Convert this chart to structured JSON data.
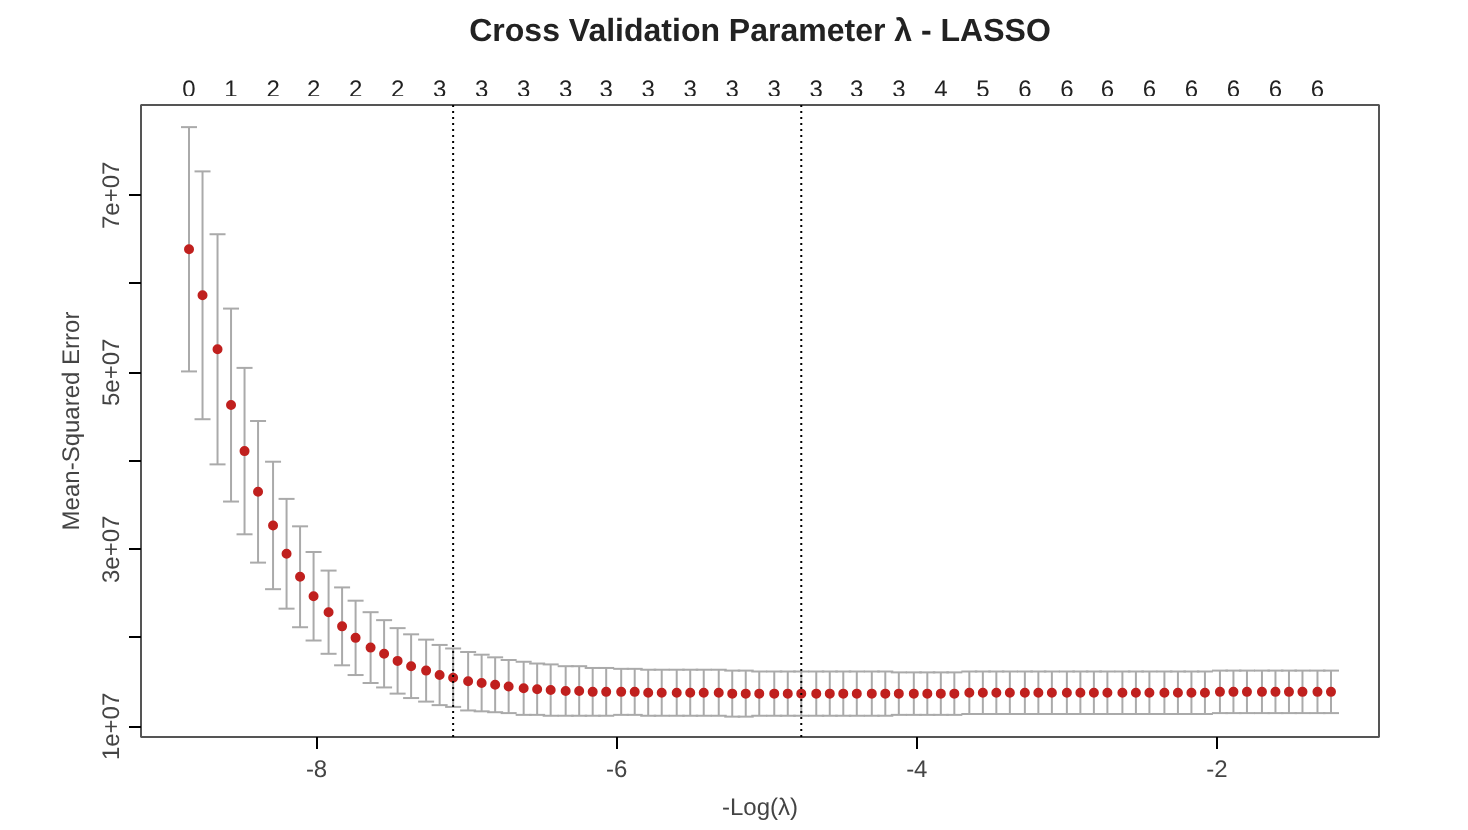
{
  "chart_data": {
    "type": "scatter",
    "title": "Cross Validation Parameter λ - LASSO",
    "xlabel": "-Log(λ)",
    "ylabel": "Mean-Squared Error",
    "x": [
      -8.85,
      -8.76,
      -8.66,
      -8.57,
      -8.48,
      -8.39,
      -8.29,
      -8.2,
      -8.11,
      -8.02,
      -7.92,
      -7.83,
      -7.74,
      -7.64,
      -7.55,
      -7.46,
      -7.37,
      -7.27,
      -7.18,
      -7.09,
      -6.99,
      -6.9,
      -6.81,
      -6.72,
      -6.62,
      -6.53,
      -6.44,
      -6.34,
      -6.25,
      -6.16,
      -6.07,
      -5.97,
      -5.88,
      -5.79,
      -5.7,
      -5.6,
      -5.51,
      -5.42,
      -5.32,
      -5.23,
      -5.14,
      -5.05,
      -4.95,
      -4.86,
      -4.77,
      -4.67,
      -4.58,
      -4.49,
      -4.4,
      -4.3,
      -4.21,
      -4.12,
      -4.02,
      -3.93,
      -3.84,
      -3.75,
      -3.65,
      -3.56,
      -3.47,
      -3.38,
      -3.28,
      -3.19,
      -3.1,
      -3.0,
      -2.91,
      -2.82,
      -2.73,
      -2.63,
      -2.54,
      -2.45,
      -2.35,
      -2.26,
      -2.17,
      -2.08,
      -1.98,
      -1.89,
      -1.8,
      -1.7,
      -1.61,
      -1.52,
      -1.43,
      -1.33,
      -1.24
    ],
    "series": [
      {
        "color": "#c0201e",
        "values": [
          63900000,
          58700000,
          52600000,
          46300000,
          41100000,
          36500000,
          32700000,
          29500000,
          26900000,
          24700000,
          22900000,
          21300000,
          20000000,
          18900000,
          18200000,
          17400000,
          16800000,
          16300000,
          15800000,
          15500000,
          15100000,
          14900000,
          14700000,
          14500000,
          14300000,
          14200000,
          14100000,
          14000000,
          14000000,
          13900000,
          13900000,
          13900000,
          13900000,
          13800000,
          13800000,
          13800000,
          13800000,
          13800000,
          13800000,
          13700000,
          13700000,
          13700000,
          13700000,
          13700000,
          13700000,
          13700000,
          13700000,
          13700000,
          13700000,
          13700000,
          13700000,
          13700000,
          13700000,
          13700000,
          13700000,
          13700000,
          13800000,
          13800000,
          13800000,
          13800000,
          13800000,
          13800000,
          13800000,
          13800000,
          13800000,
          13800000,
          13800000,
          13800000,
          13800000,
          13800000,
          13800000,
          13800000,
          13800000,
          13800000,
          13900000,
          13900000,
          13900000,
          13900000,
          13900000,
          13900000,
          13900000,
          13900000,
          13900000
        ],
        "errors": [
          13800000,
          14000000,
          13000000,
          10900000,
          9400000,
          8000000,
          7200000,
          6200000,
          5700000,
          5000000,
          4700000,
          4400000,
          4200000,
          4000000,
          3800000,
          3700000,
          3600000,
          3500000,
          3400000,
          3300000,
          3300000,
          3200000,
          3100000,
          3000000,
          3000000,
          2900000,
          2900000,
          2800000,
          2800000,
          2700000,
          2700000,
          2600000,
          2600000,
          2600000,
          2600000,
          2600000,
          2600000,
          2600000,
          2600000,
          2600000,
          2600000,
          2500000,
          2500000,
          2500000,
          2500000,
          2500000,
          2500000,
          2500000,
          2500000,
          2500000,
          2500000,
          2400000,
          2400000,
          2400000,
          2400000,
          2400000,
          2400000,
          2400000,
          2400000,
          2400000,
          2400000,
          2400000,
          2400000,
          2400000,
          2400000,
          2400000,
          2400000,
          2400000,
          2400000,
          2400000,
          2400000,
          2400000,
          2400000,
          2400000,
          2400000,
          2400000,
          2400000,
          2400000,
          2400000,
          2400000,
          2400000,
          2400000,
          2400000
        ]
      }
    ],
    "xlim": [
      -9.17,
      -0.92
    ],
    "xticks": [
      -8,
      -6,
      -4,
      -2
    ],
    "annotations": [
      "0",
      "1",
      "2",
      "2",
      "2",
      "2",
      "3",
      "3",
      "3",
      "3",
      "3",
      "3",
      "3",
      "3",
      "3",
      "3",
      "3",
      "3",
      "4",
      "5",
      "6",
      "6",
      "6",
      "6",
      "6",
      "6",
      "6",
      "6"
    ],
    "ylim": [
      8800000,
      80200000
    ],
    "yticks": [
      {
        "value": 10000000,
        "label": "1e+07"
      },
      {
        "value": 20000000,
        "label": null
      },
      {
        "value": 30000000,
        "label": "3e+07"
      },
      {
        "value": 40000000,
        "label": null
      },
      {
        "value": 50000000,
        "label": "5e+07"
      },
      {
        "value": 60000000,
        "label": null
      },
      {
        "value": 70000000,
        "label": "7e+07"
      }
    ],
    "ref_lines": [
      {
        "axis": "x",
        "value": -7.09,
        "line_style": "dotted",
        "color": "#000000"
      },
      {
        "axis": "x",
        "value": -4.77,
        "line_style": "dotted",
        "color": "#000000"
      }
    ],
    "grid": false,
    "marker": "circle"
  }
}
